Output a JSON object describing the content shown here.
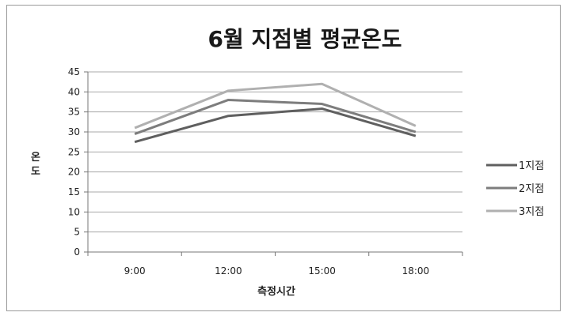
{
  "chart_data": {
    "type": "line",
    "title": "6월 지점별 평균온도",
    "xlabel": "측정시간",
    "ylabel": "온도",
    "categories": [
      "9:00",
      "12:00",
      "15:00",
      "18:00"
    ],
    "series": [
      {
        "name": "1지점",
        "values": [
          27.5,
          34,
          35.8,
          29
        ],
        "color": "#5f5f5f"
      },
      {
        "name": "2지점",
        "values": [
          29.5,
          38,
          37,
          30
        ],
        "color": "#7d7d7d"
      },
      {
        "name": "3지점",
        "values": [
          31,
          40.3,
          42,
          31.5
        ],
        "color": "#b0b0b0"
      }
    ],
    "ylim": [
      0,
      45
    ],
    "yticks": [
      0,
      5,
      10,
      15,
      20,
      25,
      30,
      35,
      40,
      45
    ],
    "grid": true,
    "legend": "right"
  }
}
